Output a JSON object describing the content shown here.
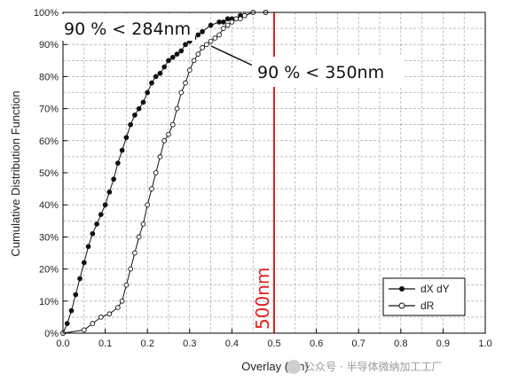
{
  "chart_data": {
    "type": "line",
    "xlabel": "Overlay (µm)",
    "ylabel": "Cumulative Distribution Function",
    "xlim": [
      0.0,
      1.0
    ],
    "ylim": [
      0,
      100
    ],
    "x_ticks": [
      "0.0",
      "0.1",
      "0.2",
      "0.3",
      "0.4",
      "0.5",
      "0.6",
      "0.7",
      "0.8",
      "0.9",
      "1.0"
    ],
    "y_ticks": [
      "0%",
      "10%",
      "20%",
      "30%",
      "40%",
      "50%",
      "60%",
      "70%",
      "80%",
      "90%",
      "100%"
    ],
    "grid": "on",
    "legend_position": "bottom-right",
    "series": [
      {
        "name": "dX dY",
        "marker": "filled-circle",
        "color": "#111111",
        "x": [
          0.0,
          0.01,
          0.02,
          0.03,
          0.04,
          0.05,
          0.06,
          0.07,
          0.08,
          0.09,
          0.1,
          0.11,
          0.12,
          0.13,
          0.14,
          0.15,
          0.16,
          0.17,
          0.18,
          0.19,
          0.2,
          0.21,
          0.22,
          0.23,
          0.24,
          0.25,
          0.26,
          0.27,
          0.28,
          0.29,
          0.3,
          0.31,
          0.32,
          0.33,
          0.35,
          0.37,
          0.38,
          0.39,
          0.4,
          0.41,
          0.42,
          0.43,
          0.45,
          0.48
        ],
        "y": [
          0,
          3,
          7,
          12,
          17,
          22,
          27,
          31,
          34,
          37,
          40,
          44,
          48,
          53,
          57,
          61,
          65,
          68,
          70,
          72,
          75,
          78,
          80,
          81,
          83,
          85,
          86,
          87,
          88,
          90,
          91,
          92,
          93,
          94,
          96,
          97,
          97,
          98,
          98,
          98,
          99,
          99,
          100,
          100
        ]
      },
      {
        "name": "dR",
        "marker": "open-circle",
        "color": "#111111",
        "x": [
          0.0,
          0.05,
          0.07,
          0.09,
          0.11,
          0.13,
          0.14,
          0.15,
          0.16,
          0.17,
          0.18,
          0.19,
          0.2,
          0.21,
          0.22,
          0.23,
          0.24,
          0.25,
          0.26,
          0.27,
          0.28,
          0.29,
          0.3,
          0.31,
          0.32,
          0.33,
          0.34,
          0.35,
          0.36,
          0.37,
          0.38,
          0.39,
          0.4,
          0.41,
          0.42,
          0.43,
          0.45,
          0.48
        ],
        "y": [
          0,
          1,
          3,
          5,
          6,
          8,
          10,
          15,
          20,
          25,
          30,
          34,
          40,
          45,
          50,
          55,
          60,
          62,
          65,
          70,
          75,
          78,
          82,
          85,
          87,
          89,
          90,
          91,
          92,
          93,
          95,
          96,
          97,
          98,
          98,
          99,
          100,
          100
        ]
      }
    ],
    "reference_line": {
      "x": 0.5,
      "label": "500nm",
      "color": "#e02020"
    },
    "annotations": [
      "90 % < 284nm",
      "90 % < 350nm"
    ]
  },
  "watermark": "公众号 · 半导体微纳加工工厂"
}
